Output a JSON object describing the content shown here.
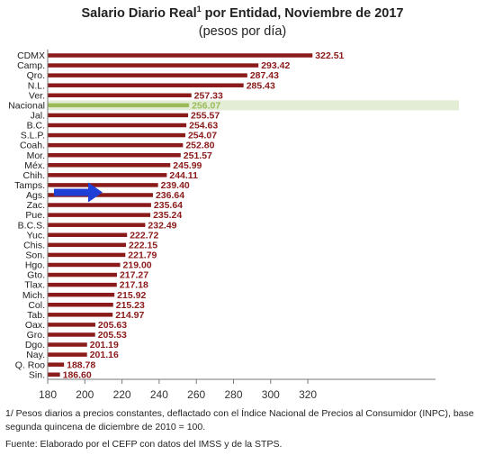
{
  "title": {
    "main": "Salario Diario Real",
    "sup": "1",
    "rest": " por Entidad, Noviembre de 2017"
  },
  "subtitle": "(pesos por día)",
  "footnote": "1/ Pesos diarios a precios constantes, deflactado con el Índice Nacional de Precios al Consumidor (INPC), base segunda quincena de diciembre de 2010 = 100.",
  "source": "Fuente: Elaborado por el CEFP con datos  del IMSS y de la STPS.",
  "colors": {
    "bar": "#8b1a1a",
    "label": "#8b1a1a",
    "highlight_bg": "#e3ecd5",
    "highlight_bar": "#9bbb59",
    "highlight_label": "#9bbb59",
    "arrow": "#1f3fd6"
  },
  "chart_data": {
    "type": "bar",
    "orientation": "horizontal",
    "categories": [
      "CDMX",
      "Camp.",
      "Qro.",
      "N.L.",
      "Ver.",
      "Nacional",
      "Jal.",
      "B.C.",
      "S.L.P.",
      "Coah.",
      "Mor.",
      "Méx.",
      "Chih.",
      "Tamps.",
      "Ags.",
      "Zac.",
      "Pue.",
      "B.C.S.",
      "Yuc.",
      "Chis.",
      "Son.",
      "Hgo.",
      "Gto.",
      "Tlax.",
      "Mich.",
      "Col.",
      "Tab.",
      "Oax.",
      "Gro.",
      "Dgo.",
      "Nay.",
      "Q. Roo",
      "Sin."
    ],
    "values": [
      322.51,
      293.42,
      287.43,
      285.43,
      257.33,
      256.07,
      255.57,
      254.63,
      254.07,
      252.8,
      251.57,
      245.99,
      244.11,
      239.4,
      236.64,
      235.64,
      235.24,
      232.49,
      222.72,
      222.15,
      221.79,
      219.0,
      217.27,
      217.18,
      215.92,
      215.23,
      214.97,
      205.63,
      205.53,
      201.19,
      201.16,
      188.78,
      186.6
    ],
    "value_labels": [
      "322.51",
      "293.42",
      "287.43",
      "285.43",
      "257.33",
      "256.07",
      "255.57",
      "254.63",
      "254.07",
      "252.80",
      "251.57",
      "245.99",
      "244.11",
      "239.40",
      "236.64",
      "235.64",
      "235.24",
      "232.49",
      "222.72",
      "222.15",
      "221.79",
      "219.00",
      "217.27",
      "217.18",
      "215.92",
      "215.23",
      "214.97",
      "205.63",
      "205.53",
      "201.19",
      "201.16",
      "188.78",
      "186.60"
    ],
    "highlight": "Nacional",
    "arrow_at": "Ags.",
    "xlim": [
      180,
      330
    ],
    "xticks": [
      "180",
      "200",
      "220",
      "240",
      "260",
      "280",
      "300",
      "320"
    ],
    "grid": false
  }
}
